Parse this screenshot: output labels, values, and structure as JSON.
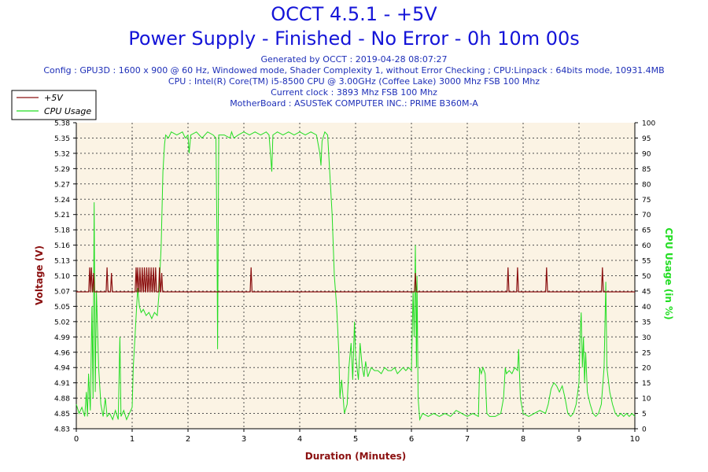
{
  "header": {
    "title": "OCCT 4.5.1 - +5V",
    "subtitle": "Power Supply - Finished - No Error - 0h 10m 00s",
    "info_lines": [
      "Generated by OCCT : 2019-04-28 08:07:27",
      "Config : GPU3D : 1600 x 900 @ 60 Hz, Windowed mode, Shader Complexity 1, without Error Checking ; CPU:Linpack : 64bits mode, 10931.4MB",
      "CPU : Intel(R) Core(TM) i5-8500 CPU @ 3.00GHz (Coffee Lake) 3000 Mhz FSB 100 Mhz",
      "Current clock : 3893 Mhz FSB 100 Mhz",
      "MotherBoard : ASUSTeK COMPUTER INC.: PRIME B360M-A"
    ]
  },
  "colors": {
    "voltage": "#8b1010",
    "cpu": "#22dd22",
    "plot_bg": "#fbf3e4",
    "grid": "#505050",
    "title": "#1414d8",
    "info": "#1e2fb8"
  },
  "chart_data": {
    "type": "line",
    "xlabel": "Duration (Minutes)",
    "ylabel_left": "Voltage (V)",
    "ylabel_right": "CPU Usage (in %)",
    "xlim": [
      0,
      10
    ],
    "ylim_left": [
      4.83,
      5.38
    ],
    "ylim_right": [
      0,
      100
    ],
    "x_ticks": [
      "0",
      "1",
      "2",
      "3",
      "4",
      "5",
      "6",
      "7",
      "8",
      "9",
      "10"
    ],
    "y_ticks_left": [
      "4.83",
      "4.85",
      "4.88",
      "4.91",
      "4.94",
      "4.96",
      "4.99",
      "5.02",
      "5.05",
      "5.07",
      "5.10",
      "5.13",
      "5.16",
      "5.18",
      "5.21",
      "5.24",
      "5.27",
      "5.29",
      "5.32",
      "5.35",
      "5.38"
    ],
    "y_ticks_right": [
      "0",
      "5",
      "10",
      "15",
      "20",
      "25",
      "30",
      "35",
      "40",
      "45",
      "50",
      "55",
      "60",
      "65",
      "70",
      "75",
      "80",
      "85",
      "90",
      "95",
      "100"
    ],
    "grid": true,
    "legend": [
      "+5V",
      "CPU Usage"
    ],
    "legend_position": "top-left",
    "series": [
      {
        "name": "+5V",
        "axis": "left",
        "baseline": 5.076,
        "spikes": [
          {
            "x": 0.24,
            "y": 5.12
          },
          {
            "x": 0.27,
            "y": 5.12
          },
          {
            "x": 0.31,
            "y": 5.11
          },
          {
            "x": 0.55,
            "y": 5.12
          },
          {
            "x": 0.63,
            "y": 5.11
          },
          {
            "x": 1.07,
            "y": 5.12
          },
          {
            "x": 1.1,
            "y": 5.12
          },
          {
            "x": 1.14,
            "y": 5.12
          },
          {
            "x": 1.18,
            "y": 5.12
          },
          {
            "x": 1.22,
            "y": 5.12
          },
          {
            "x": 1.26,
            "y": 5.12
          },
          {
            "x": 1.3,
            "y": 5.12
          },
          {
            "x": 1.34,
            "y": 5.12
          },
          {
            "x": 1.38,
            "y": 5.12
          },
          {
            "x": 1.42,
            "y": 5.12
          },
          {
            "x": 1.49,
            "y": 5.12
          },
          {
            "x": 1.53,
            "y": 5.11
          },
          {
            "x": 3.13,
            "y": 5.12
          },
          {
            "x": 6.07,
            "y": 5.11
          },
          {
            "x": 7.73,
            "y": 5.12
          },
          {
            "x": 7.9,
            "y": 5.12
          },
          {
            "x": 8.42,
            "y": 5.12
          },
          {
            "x": 9.42,
            "y": 5.12
          }
        ]
      },
      {
        "name": "CPU Usage",
        "axis": "right",
        "points": [
          [
            0.0,
            8
          ],
          [
            0.05,
            5
          ],
          [
            0.1,
            7
          ],
          [
            0.15,
            4
          ],
          [
            0.18,
            12
          ],
          [
            0.2,
            4
          ],
          [
            0.22,
            18
          ],
          [
            0.25,
            6
          ],
          [
            0.28,
            40
          ],
          [
            0.3,
            10
          ],
          [
            0.32,
            74
          ],
          [
            0.34,
            12
          ],
          [
            0.36,
            45
          ],
          [
            0.4,
            20
          ],
          [
            0.44,
            8
          ],
          [
            0.48,
            4
          ],
          [
            0.52,
            10
          ],
          [
            0.55,
            4
          ],
          [
            0.6,
            5
          ],
          [
            0.65,
            3
          ],
          [
            0.7,
            6
          ],
          [
            0.75,
            3
          ],
          [
            0.78,
            30
          ],
          [
            0.8,
            4
          ],
          [
            0.85,
            6
          ],
          [
            0.9,
            3
          ],
          [
            0.95,
            5
          ],
          [
            1.0,
            7
          ],
          [
            1.02,
            20
          ],
          [
            1.05,
            30
          ],
          [
            1.08,
            40
          ],
          [
            1.1,
            46
          ],
          [
            1.13,
            40
          ],
          [
            1.16,
            38
          ],
          [
            1.2,
            39
          ],
          [
            1.25,
            37
          ],
          [
            1.3,
            38
          ],
          [
            1.35,
            36
          ],
          [
            1.4,
            38
          ],
          [
            1.45,
            37
          ],
          [
            1.48,
            44
          ],
          [
            1.5,
            52
          ],
          [
            1.52,
            60
          ],
          [
            1.55,
            84
          ],
          [
            1.58,
            93
          ],
          [
            1.6,
            96
          ],
          [
            1.65,
            95
          ],
          [
            1.7,
            97
          ],
          [
            1.8,
            96
          ],
          [
            1.9,
            97
          ],
          [
            1.95,
            95
          ],
          [
            2.0,
            96
          ],
          [
            2.02,
            90
          ],
          [
            2.05,
            96
          ],
          [
            2.15,
            97
          ],
          [
            2.25,
            95
          ],
          [
            2.35,
            97
          ],
          [
            2.45,
            96
          ],
          [
            2.5,
            95
          ],
          [
            2.52,
            60
          ],
          [
            2.53,
            26
          ],
          [
            2.54,
            60
          ],
          [
            2.55,
            96
          ],
          [
            2.65,
            96
          ],
          [
            2.75,
            95
          ],
          [
            2.78,
            97
          ],
          [
            2.82,
            95
          ],
          [
            2.9,
            96
          ],
          [
            3.0,
            97
          ],
          [
            3.1,
            96
          ],
          [
            3.2,
            97
          ],
          [
            3.3,
            96
          ],
          [
            3.4,
            97
          ],
          [
            3.45,
            96
          ],
          [
            3.5,
            84
          ],
          [
            3.52,
            96
          ],
          [
            3.6,
            97
          ],
          [
            3.7,
            96
          ],
          [
            3.8,
            97
          ],
          [
            3.9,
            96
          ],
          [
            4.0,
            97
          ],
          [
            4.1,
            96
          ],
          [
            4.2,
            97
          ],
          [
            4.3,
            96
          ],
          [
            4.36,
            90
          ],
          [
            4.38,
            86
          ],
          [
            4.4,
            94
          ],
          [
            4.45,
            97
          ],
          [
            4.5,
            96
          ],
          [
            4.58,
            70
          ],
          [
            4.62,
            50
          ],
          [
            4.66,
            40
          ],
          [
            4.7,
            25
          ],
          [
            4.72,
            10
          ],
          [
            4.75,
            16
          ],
          [
            4.8,
            5
          ],
          [
            4.85,
            8
          ],
          [
            4.88,
            20
          ],
          [
            4.92,
            28
          ],
          [
            4.95,
            16
          ],
          [
            4.98,
            35
          ],
          [
            5.0,
            24
          ],
          [
            5.05,
            16
          ],
          [
            5.08,
            28
          ],
          [
            5.12,
            20
          ],
          [
            5.15,
            17
          ],
          [
            5.18,
            22
          ],
          [
            5.22,
            17
          ],
          [
            5.28,
            20
          ],
          [
            5.34,
            19
          ],
          [
            5.4,
            19
          ],
          [
            5.46,
            18
          ],
          [
            5.52,
            20
          ],
          [
            5.58,
            19
          ],
          [
            5.64,
            19
          ],
          [
            5.7,
            20
          ],
          [
            5.75,
            18
          ],
          [
            5.8,
            19
          ],
          [
            5.85,
            20
          ],
          [
            5.9,
            19
          ],
          [
            5.95,
            20
          ],
          [
            6.0,
            19
          ],
          [
            6.03,
            45
          ],
          [
            6.05,
            30
          ],
          [
            6.07,
            60
          ],
          [
            6.09,
            20
          ],
          [
            6.1,
            50
          ],
          [
            6.12,
            10
          ],
          [
            6.15,
            3
          ],
          [
            6.2,
            5
          ],
          [
            6.3,
            4
          ],
          [
            6.4,
            5
          ],
          [
            6.5,
            4
          ],
          [
            6.6,
            5
          ],
          [
            6.7,
            4
          ],
          [
            6.8,
            6
          ],
          [
            6.9,
            5
          ],
          [
            7.0,
            4
          ],
          [
            7.1,
            5
          ],
          [
            7.2,
            4
          ],
          [
            7.22,
            20
          ],
          [
            7.25,
            18
          ],
          [
            7.28,
            20
          ],
          [
            7.32,
            18
          ],
          [
            7.35,
            5
          ],
          [
            7.4,
            4
          ],
          [
            7.5,
            4
          ],
          [
            7.6,
            5
          ],
          [
            7.65,
            10
          ],
          [
            7.68,
            20
          ],
          [
            7.7,
            18
          ],
          [
            7.75,
            19
          ],
          [
            7.8,
            18
          ],
          [
            7.85,
            20
          ],
          [
            7.9,
            19
          ],
          [
            7.92,
            26
          ],
          [
            7.95,
            10
          ],
          [
            8.0,
            5
          ],
          [
            8.1,
            4
          ],
          [
            8.2,
            5
          ],
          [
            8.3,
            6
          ],
          [
            8.4,
            5
          ],
          [
            8.45,
            8
          ],
          [
            8.5,
            13
          ],
          [
            8.55,
            15
          ],
          [
            8.6,
            14
          ],
          [
            8.65,
            12
          ],
          [
            8.7,
            14
          ],
          [
            8.75,
            10
          ],
          [
            8.8,
            5
          ],
          [
            8.85,
            4
          ],
          [
            8.9,
            5
          ],
          [
            8.95,
            8
          ],
          [
            9.0,
            15
          ],
          [
            9.02,
            30
          ],
          [
            9.04,
            38
          ],
          [
            9.06,
            20
          ],
          [
            9.08,
            30
          ],
          [
            9.1,
            15
          ],
          [
            9.12,
            25
          ],
          [
            9.15,
            12
          ],
          [
            9.2,
            8
          ],
          [
            9.25,
            5
          ],
          [
            9.3,
            4
          ],
          [
            9.35,
            5
          ],
          [
            9.4,
            8
          ],
          [
            9.45,
            20
          ],
          [
            9.48,
            48
          ],
          [
            9.5,
            20
          ],
          [
            9.55,
            12
          ],
          [
            9.6,
            8
          ],
          [
            9.65,
            5
          ],
          [
            9.7,
            4
          ],
          [
            9.75,
            5
          ],
          [
            9.8,
            4
          ],
          [
            9.85,
            5
          ],
          [
            9.9,
            4
          ],
          [
            9.95,
            5
          ],
          [
            10.0,
            4
          ]
        ]
      }
    ]
  }
}
